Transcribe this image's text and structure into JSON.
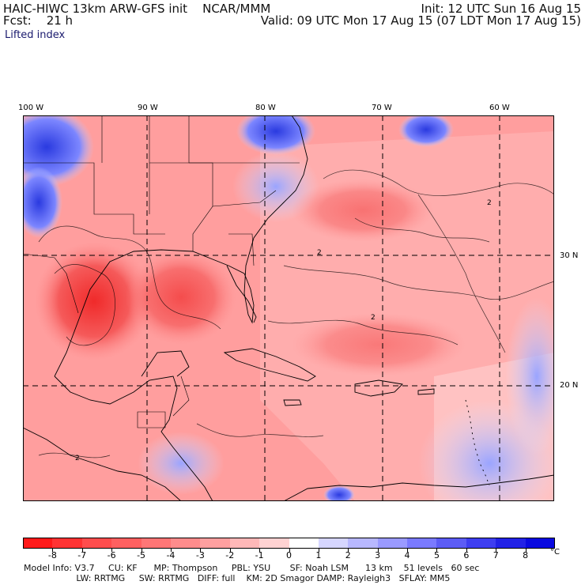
{
  "header": {
    "title": "HAIC-HIWC 13km ARW-GFS init    NCAR/MMM",
    "forecast": "Fcst:    21 h",
    "init": "Init: 12 UTC Sun 16 Aug 15",
    "valid": "Valid: 09 UTC Mon 17 Aug 15 (07 LDT Mon 17 Aug 15)",
    "field": "Lifted index"
  },
  "map": {
    "longitude_labels": [
      "100 W",
      "90 W",
      "80 W",
      "70 W",
      "60 W"
    ],
    "latitude_labels": [
      "30 N",
      "20 N"
    ],
    "contour_label": "2",
    "colors": {
      "land_fill": "#ff9a9a",
      "hot_core": "#f23b3b",
      "ocean_mid": "#ffb3b3",
      "stable_blue": "#8c8cff",
      "dark_blue": "#3a46e6"
    }
  },
  "colorbar": {
    "labels": [
      "-8",
      "-7",
      "-6",
      "-5",
      "-4",
      "-3",
      "-2",
      "-1",
      "0",
      "1",
      "2",
      "3",
      "4",
      "5",
      "6",
      "7",
      "8"
    ],
    "units": "°C",
    "colors": [
      "#ff1a1a",
      "#ff3333",
      "#ff4d4d",
      "#ff6060",
      "#ff7676",
      "#ff8c8c",
      "#ffa0a0",
      "#ffb8b8",
      "#ffd2d2",
      "#ffffff",
      "#d6d6ff",
      "#b8b8ff",
      "#9a9aff",
      "#7a7aff",
      "#5c5cf5",
      "#3e3ef0",
      "#2222e6",
      "#0a0ae0"
    ]
  },
  "model_info": {
    "line1": "Model Info: V3.7     CU: KF      MP: Thompson     PBL: YSU       SF: Noah LSM      13 km    51 levels   60 sec",
    "line2": "                   LW: RRTMG     SW: RRTMG   DIFF: full    KM: 2D Smagor DAMP: Rayleigh3   SFLAY: MM5"
  }
}
